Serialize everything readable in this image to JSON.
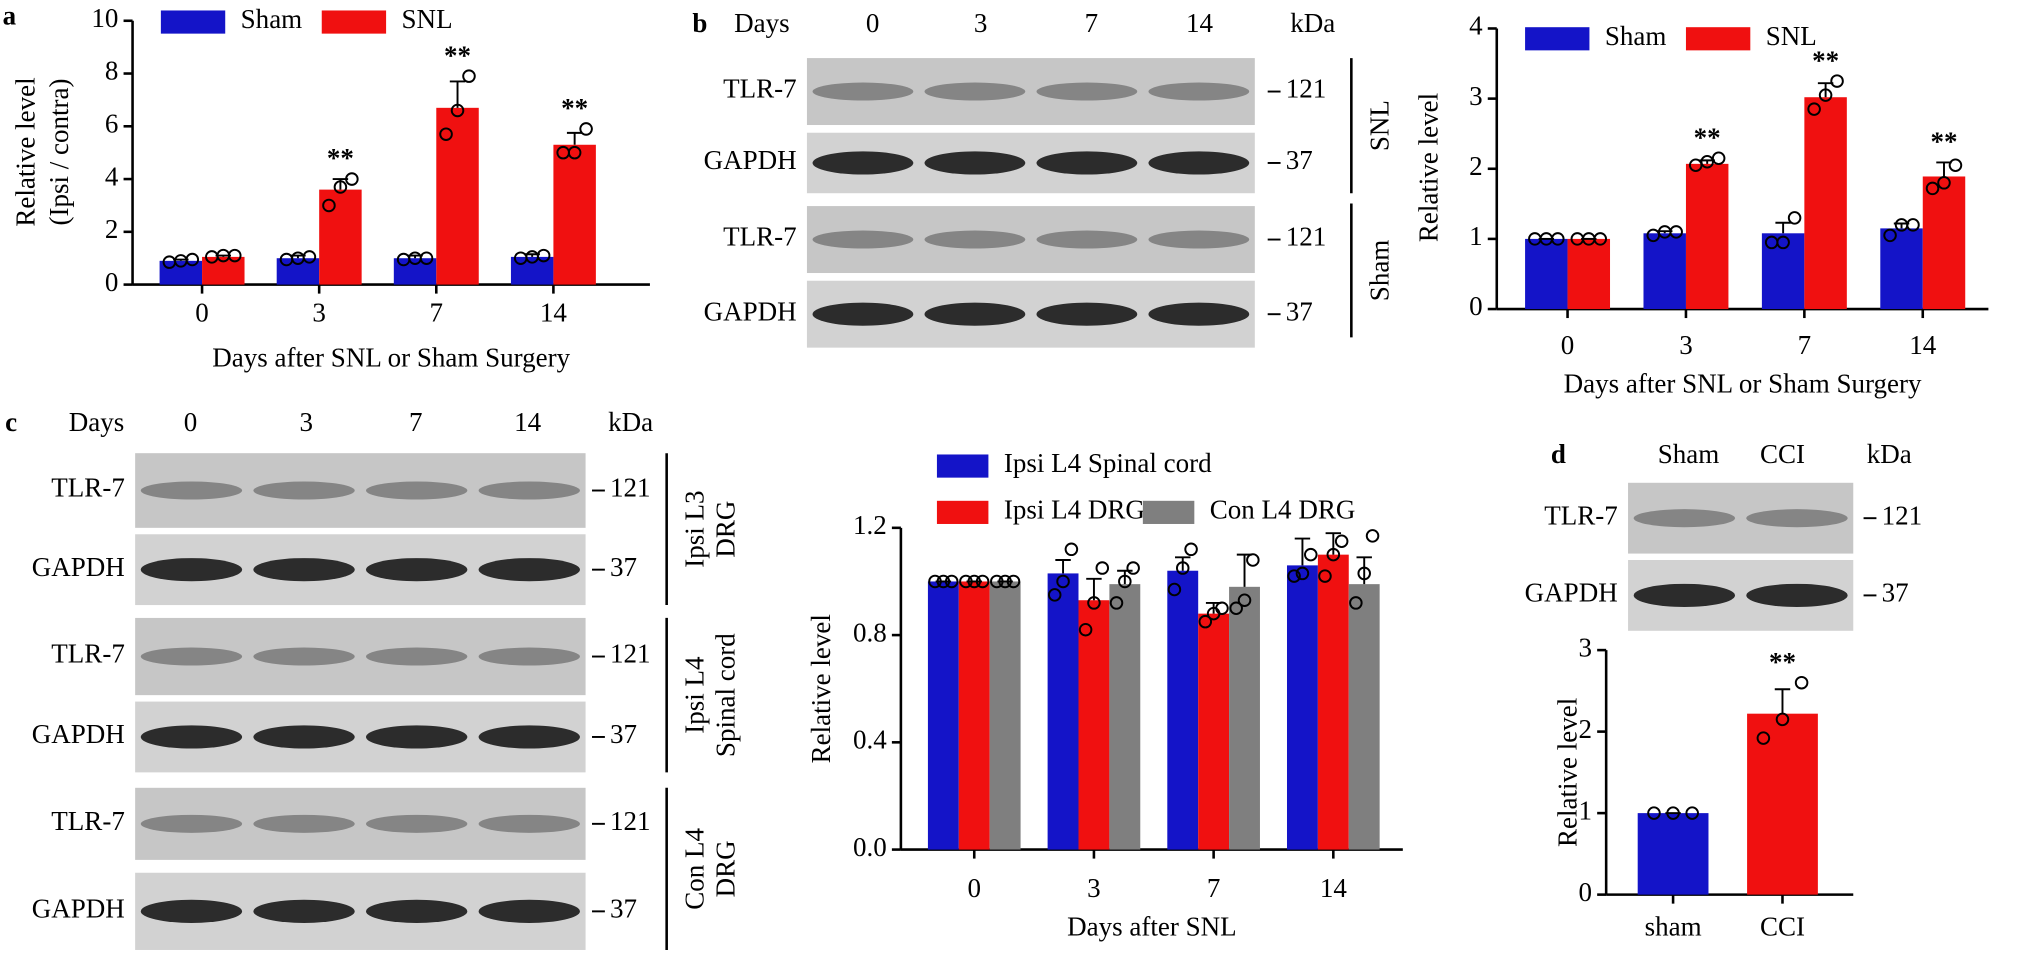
{
  "panel_labels": [
    "a",
    "b",
    "c",
    "d"
  ],
  "blots": [
    {
      "header": [
        "Days",
        "0",
        "3",
        "7",
        "14",
        "kDa"
      ],
      "rows": [
        {
          "label": "TLR-7",
          "marker": "121"
        },
        {
          "label": "GAPDH",
          "marker": "37"
        },
        {
          "label": "TLR-7",
          "marker": "121"
        },
        {
          "label": "GAPDH",
          "marker": "37"
        }
      ],
      "groups": [
        [
          "SNL"
        ],
        [
          "Sham"
        ]
      ]
    },
    {
      "header": [
        "Days",
        "0",
        "3",
        "7",
        "14",
        "kDa"
      ],
      "rows": [
        {
          "label": "TLR-7",
          "marker": "121"
        },
        {
          "label": "GAPDH",
          "marker": "37"
        },
        {
          "label": "TLR-7",
          "marker": "121"
        },
        {
          "label": "GAPDH",
          "marker": "37"
        },
        {
          "label": "TLR-7",
          "marker": "121"
        },
        {
          "label": "GAPDH",
          "marker": "37"
        }
      ],
      "groups": [
        [
          "Ipsi L3",
          "DRG"
        ],
        [
          "Ipsi  L4",
          "Spinal cord"
        ],
        [
          "Con  L4",
          "DRG"
        ]
      ]
    },
    {
      "header": [
        "Sham",
        "CCI",
        "kDa"
      ],
      "rows": [
        {
          "label": "TLR-7",
          "marker": "121"
        },
        {
          "label": "GAPDH",
          "marker": "37"
        }
      ],
      "groups": []
    }
  ],
  "chart_data": [
    {
      "type": "bar",
      "y_label": [
        "Relative level",
        "(Ipsi / contra)"
      ],
      "x_label": "Days after SNL or Sham Surgery",
      "categories": [
        "0",
        "3",
        "7",
        "14"
      ],
      "series": [
        {
          "name": "Sham",
          "color": "#1414c8",
          "values": [
            0.9,
            1.0,
            1.0,
            1.05
          ],
          "errors": [
            0.05,
            0.1,
            0.1,
            0.1
          ],
          "points": [
            [
              0.85,
              0.9,
              0.95
            ],
            [
              0.95,
              1.0,
              1.05
            ],
            [
              0.95,
              1.0,
              1.0
            ],
            [
              1.0,
              1.05,
              1.1
            ]
          ]
        },
        {
          "name": "SNL",
          "color": "#f01010",
          "values": [
            1.05,
            3.6,
            6.7,
            5.3
          ],
          "errors": [
            0.05,
            0.4,
            1.0,
            0.45
          ],
          "points": [
            [
              1.05,
              1.1,
              1.1
            ],
            [
              3.0,
              3.7,
              4.0
            ],
            [
              5.7,
              6.6,
              7.9
            ],
            [
              5.0,
              5.0,
              5.9
            ]
          ]
        }
      ],
      "ylim": [
        0,
        10
      ],
      "yticks": [
        0,
        2,
        4,
        6,
        8,
        10
      ],
      "annotations": [
        {
          "text": "**",
          "category": "3",
          "series": "SNL"
        },
        {
          "text": "**",
          "category": "7",
          "series": "SNL"
        },
        {
          "text": "**",
          "category": "14",
          "series": "SNL"
        }
      ]
    },
    {
      "type": "bar",
      "y_label": "Relative level",
      "x_label": "Days after SNL or Sham Surgery",
      "categories": [
        "0",
        "3",
        "7",
        "14"
      ],
      "series": [
        {
          "name": "Sham",
          "color": "#1414c8",
          "values": [
            1,
            1.08,
            1.08,
            1.15
          ],
          "errors": [
            0,
            0.03,
            0.15,
            0.07
          ],
          "points": [
            [
              1,
              1,
              1
            ],
            [
              1.05,
              1.1,
              1.1
            ],
            [
              0.95,
              0.95,
              1.3
            ],
            [
              1.05,
              1.2,
              1.2
            ]
          ]
        },
        {
          "name": "SNL",
          "color": "#f01010",
          "values": [
            1,
            2.07,
            3.02,
            1.89
          ],
          "errors": [
            0,
            0.05,
            0.2,
            0.2
          ],
          "points": [
            [
              1,
              1,
              1
            ],
            [
              2.05,
              2.1,
              2.15
            ],
            [
              2.85,
              3.05,
              3.25
            ],
            [
              1.72,
              1.8,
              2.05
            ]
          ]
        }
      ],
      "ylim": [
        0,
        4
      ],
      "yticks": [
        0,
        1,
        2,
        3,
        4
      ],
      "annotations": [
        {
          "text": "**",
          "category": "3",
          "series": "SNL"
        },
        {
          "text": "**",
          "category": "7",
          "series": "SNL"
        },
        {
          "text": "**",
          "category": "14",
          "series": "SNL"
        }
      ]
    },
    {
      "type": "bar",
      "y_label": "Relative level",
      "x_label": "Days after SNL",
      "categories": [
        "0",
        "3",
        "7",
        "14"
      ],
      "series": [
        {
          "name": "Ipsi L4 Spinal cord",
          "color": "#1414c8",
          "values": [
            1,
            1.03,
            1.04,
            1.06
          ],
          "errors": [
            0,
            0.05,
            0.05,
            0.1
          ],
          "points": [
            [
              1,
              1,
              1
            ],
            [
              0.95,
              1.0,
              1.12
            ],
            [
              0.97,
              1.05,
              1.12
            ],
            [
              1.02,
              1.03,
              1.1
            ]
          ]
        },
        {
          "name": "Ipsi L4 DRG",
          "color": "#f01010",
          "values": [
            1,
            0.93,
            0.88,
            1.1
          ],
          "errors": [
            0,
            0.08,
            0.04,
            0.08
          ],
          "points": [
            [
              1,
              1,
              1
            ],
            [
              0.82,
              0.92,
              1.05
            ],
            [
              0.85,
              0.88,
              0.9
            ],
            [
              1.02,
              1.1,
              1.15
            ]
          ]
        },
        {
          "name": "Con L4 DRG",
          "color": "#7f7f7f",
          "values": [
            1,
            0.99,
            0.98,
            0.99
          ],
          "errors": [
            0,
            0.05,
            0.12,
            0.1
          ],
          "points": [
            [
              1,
              1,
              1
            ],
            [
              0.92,
              1.0,
              1.05
            ],
            [
              0.9,
              0.93,
              1.08
            ],
            [
              0.92,
              1.03,
              1.17
            ]
          ]
        }
      ],
      "ylim": [
        0,
        1.2
      ],
      "yticks": [
        {
          "value": 0,
          "label": "0.0"
        },
        0.4,
        0.8,
        1.2
      ]
    },
    {
      "type": "bar",
      "y_label": "Relative level",
      "categories": [
        "sham",
        "CCI"
      ],
      "values": [
        1,
        2.22
      ],
      "colors": [
        "#1414c8",
        "#f01010"
      ],
      "errors": [
        0,
        0.3
      ],
      "points": [
        [
          1,
          1,
          1
        ],
        [
          1.92,
          2.15,
          2.6
        ]
      ],
      "ylim": [
        0,
        3
      ],
      "yticks": [
        0,
        1,
        2,
        3
      ],
      "annotations": [
        {
          "text": "**",
          "category": "CCI"
        }
      ]
    }
  ]
}
